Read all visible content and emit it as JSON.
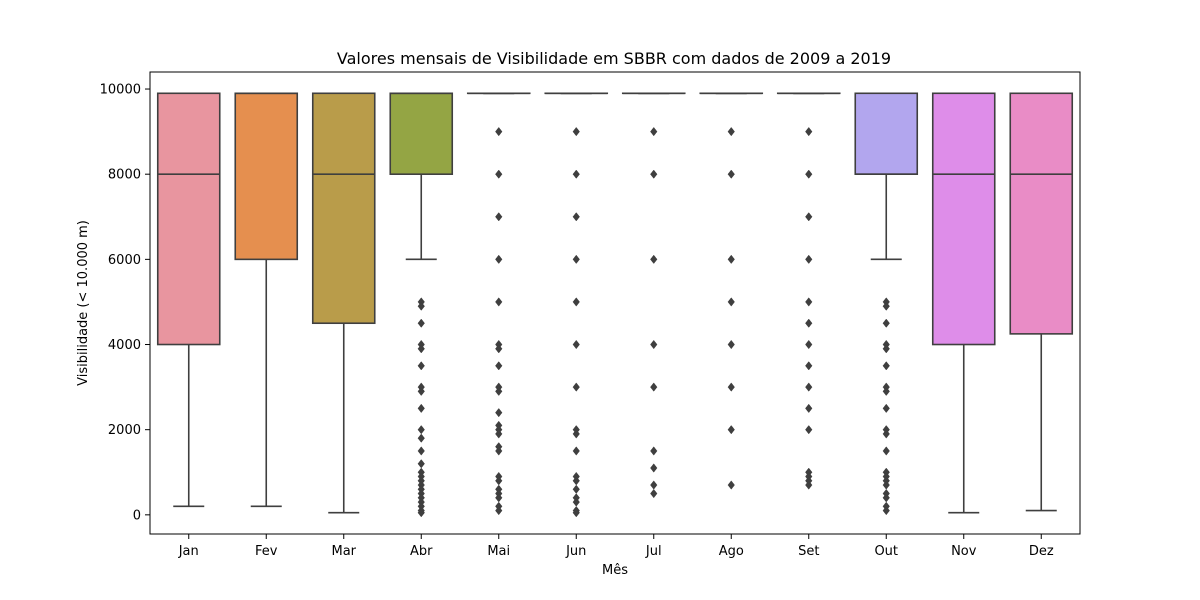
{
  "chart_data": {
    "type": "boxplot",
    "title": "Valores mensais de Visibilidade em SBBR com dados de 2009 a 2019",
    "xlabel": "Mês",
    "ylabel": "Visibilidade (< 10.000 m)",
    "ylim": [
      -450,
      10400
    ],
    "yticks": [
      0,
      2000,
      4000,
      6000,
      8000,
      10000
    ],
    "grid": false,
    "legend": "none",
    "categories": [
      "Jan",
      "Fev",
      "Mar",
      "Abr",
      "Mai",
      "Jun",
      "Jul",
      "Ago",
      "Set",
      "Out",
      "Nov",
      "Dez"
    ],
    "series": [
      {
        "whisker_low": 200,
        "q1": 4000,
        "median": 8000,
        "q3": 9900,
        "whisker_high": 9900,
        "color": "#e8959f",
        "outliers": []
      },
      {
        "whisker_low": 200,
        "q1": 6000,
        "median": 9900,
        "q3": 9900,
        "whisker_high": 9900,
        "color": "#e58f4f",
        "outliers": []
      },
      {
        "whisker_low": 50,
        "q1": 4500,
        "median": 8000,
        "q3": 9900,
        "whisker_high": 9900,
        "color": "#b99c4a",
        "outliers": []
      },
      {
        "whisker_low": 6000,
        "q1": 8000,
        "median": 9900,
        "q3": 9900,
        "whisker_high": 9900,
        "color": "#94a544",
        "outliers": [
          5000,
          4900,
          4500,
          4000,
          3900,
          3500,
          3000,
          2900,
          2500,
          2000,
          1800,
          1500,
          1200,
          1000,
          900,
          800,
          700,
          600,
          500,
          400,
          300,
          200,
          100,
          50
        ]
      },
      {
        "whisker_low": 9900,
        "q1": 9900,
        "median": 9900,
        "q3": 9900,
        "whisker_high": 9900,
        "color": "#8cbf4a",
        "outliers": [
          9000,
          8000,
          7000,
          6000,
          5000,
          4000,
          3900,
          3500,
          3000,
          2900,
          2400,
          2100,
          2000,
          1900,
          1600,
          1500,
          900,
          800,
          600,
          500,
          400,
          200,
          100
        ]
      },
      {
        "whisker_low": 9900,
        "q1": 9900,
        "median": 9900,
        "q3": 9900,
        "whisker_high": 9900,
        "color": "#52b47a",
        "outliers": [
          9000,
          8000,
          7000,
          6000,
          5000,
          4000,
          3000,
          2000,
          1900,
          1500,
          900,
          800,
          600,
          400,
          300,
          100,
          50
        ]
      },
      {
        "whisker_low": 9900,
        "q1": 9900,
        "median": 9900,
        "q3": 9900,
        "whisker_high": 9900,
        "color": "#55b0a6",
        "outliers": [
          9000,
          8000,
          6000,
          4000,
          3000,
          1500,
          1100,
          700,
          500
        ]
      },
      {
        "whisker_low": 9900,
        "q1": 9900,
        "median": 9900,
        "q3": 9900,
        "whisker_high": 9900,
        "color": "#57aec8",
        "outliers": [
          9000,
          8000,
          6000,
          5000,
          4000,
          3000,
          2000,
          700
        ]
      },
      {
        "whisker_low": 9900,
        "q1": 9900,
        "median": 9900,
        "q3": 9900,
        "whisker_high": 9900,
        "color": "#6aa2e0",
        "outliers": [
          9000,
          8000,
          7000,
          6000,
          5000,
          4500,
          4000,
          3500,
          3000,
          2500,
          2000,
          1000,
          900,
          800,
          700
        ]
      },
      {
        "whisker_low": 6000,
        "q1": 8000,
        "median": 8000,
        "q3": 9900,
        "whisker_high": 9900,
        "color": "#b2a6ee",
        "outliers": [
          5000,
          4900,
          4500,
          4000,
          3900,
          3500,
          3000,
          2900,
          2500,
          2000,
          1900,
          1500,
          1000,
          900,
          800,
          700,
          500,
          400,
          200,
          100
        ]
      },
      {
        "whisker_low": 50,
        "q1": 4000,
        "median": 8000,
        "q3": 9900,
        "whisker_high": 9900,
        "color": "#de8de9",
        "outliers": []
      },
      {
        "whisker_low": 100,
        "q1": 4250,
        "median": 8000,
        "q3": 9900,
        "whisker_high": 9900,
        "color": "#e98cc6",
        "outliers": []
      }
    ]
  }
}
